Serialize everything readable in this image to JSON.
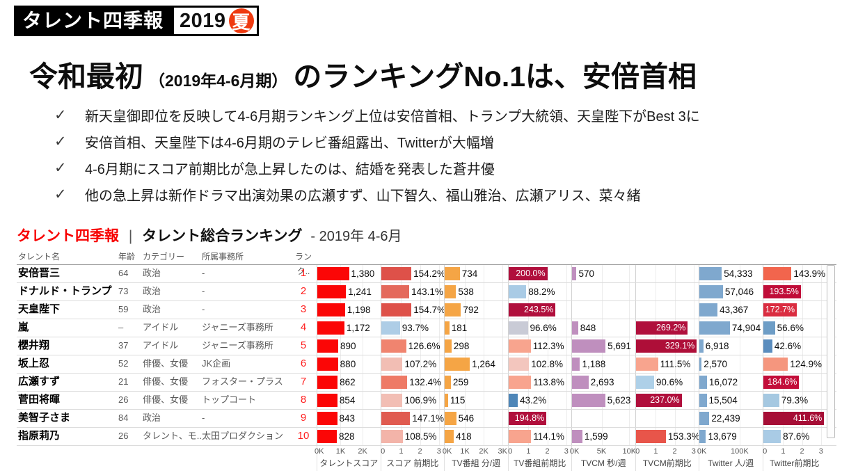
{
  "logo": {
    "title": "タレント四季報",
    "year": "2019",
    "season": "夏"
  },
  "headline": {
    "prefix": "令和最初",
    "period": "（2019年4-6月期）",
    "suffix": "のランキングNo.1は、安倍首相"
  },
  "bullets": [
    "新天皇御即位を反映して4-6月期ランキング上位は安倍首相、トランプ大統領、天皇陛下がBest 3に",
    "安倍首相、天皇陛下は4-6月期のテレビ番組露出、Twitterが大幅増",
    "4-6月期にスコア前期比が急上昇したのは、結婚を発表した蒼井優",
    "他の急上昇は新作ドラマ出演効果の広瀬すず、山下智久、福山雅治、広瀬アリス、菜々緒"
  ],
  "section": {
    "brand": "タレント四季報",
    "separator": "|",
    "title": "タレント総合ランキング",
    "period": "- 2019年 4-6月"
  },
  "table": {
    "text_headers": [
      "タレント名",
      "年齢",
      "カテゴリー",
      "所属事務所",
      "ランク.."
    ],
    "metric_columns": [
      {
        "key": "score",
        "title": "タレントスコア",
        "scale": 0.035,
        "ticks": [
          {
            "label": "0K",
            "pos": 3
          },
          {
            "label": "1K",
            "pos": 37
          },
          {
            "label": "2K",
            "pos": 72
          }
        ]
      },
      {
        "key": "score_prev",
        "title": "スコア 前期比",
        "scale": 0.3,
        "ticks": [
          {
            "label": "0",
            "pos": 3
          },
          {
            "label": "1",
            "pos": 32
          },
          {
            "label": "2",
            "pos": 62
          },
          {
            "label": "3",
            "pos": 92
          }
        ]
      },
      {
        "key": "tv_min",
        "title": "TV番組 分/週",
        "scale": 0.03,
        "ticks": [
          {
            "label": "0K",
            "pos": 4
          },
          {
            "label": "1K",
            "pos": 32
          },
          {
            "label": "2K",
            "pos": 62
          },
          {
            "label": "3K",
            "pos": 92
          }
        ]
      },
      {
        "key": "tv_prev",
        "title": "TV番組前期比",
        "scale": 0.3,
        "ticks": [
          {
            "label": "0",
            "pos": 3
          },
          {
            "label": "1",
            "pos": 32
          },
          {
            "label": "2",
            "pos": 62
          },
          {
            "label": "3",
            "pos": 92
          }
        ]
      },
      {
        "key": "cm_sec",
        "title": "TVCM 秒/週",
        "scale": 0.009,
        "ticks": [
          {
            "label": "0K",
            "pos": 4
          },
          {
            "label": "5K",
            "pos": 47
          },
          {
            "label": "10K",
            "pos": 91
          }
        ]
      },
      {
        "key": "cm_prev",
        "title": "TVCM前期比",
        "scale": 0.3,
        "ticks": [
          {
            "label": "0",
            "pos": 3
          },
          {
            "label": "1",
            "pos": 32
          },
          {
            "label": "2",
            "pos": 62
          },
          {
            "label": "3",
            "pos": 92
          }
        ]
      },
      {
        "key": "tw_people",
        "title": "Twitter 人/週",
        "scale": 0.00062,
        "ticks": [
          {
            "label": "0K",
            "pos": 4
          },
          {
            "label": "100K",
            "pos": 64
          }
        ]
      },
      {
        "key": "tw_prev",
        "title": "Twitter前期比",
        "scale": 0.3,
        "ticks": [
          {
            "label": "0",
            "pos": 3
          },
          {
            "label": "1",
            "pos": 32
          },
          {
            "label": "2",
            "pos": 62
          },
          {
            "label": "3",
            "pos": 92
          }
        ]
      }
    ]
  },
  "chart_data": {
    "type": "table",
    "title": "タレント四季報 | タレント総合ランキング - 2019年 4-6月",
    "axis_ranges": {
      "score": [
        0,
        2800
      ],
      "score_prev_pct": [
        0,
        330
      ],
      "tv_min": [
        0,
        3300
      ],
      "tv_prev_pct": [
        0,
        330
      ],
      "cm_sec": [
        0,
        11000
      ],
      "cm_prev_pct": [
        0,
        330
      ],
      "tw_people": [
        0,
        160000
      ],
      "tw_prev_pct": [
        0,
        330
      ]
    },
    "rows": [
      {
        "name": "安倍晋三",
        "age": "64",
        "category": "政治",
        "agency": "-",
        "rank": "1",
        "metrics": {
          "score": {
            "value": 1380,
            "label": "1,380",
            "color": "#fb0606"
          },
          "score_prev": {
            "value": 154.2,
            "label": "154.2%",
            "color": "#de5149"
          },
          "tv_min": {
            "value": 734,
            "label": "734",
            "color": "#f5a545"
          },
          "tv_prev": {
            "value": 200.0,
            "label": "200.0%",
            "color": "#b00f3c",
            "inside": true
          },
          "cm_sec": {
            "value": 570,
            "label": "570",
            "color": "#bf8fbe"
          },
          "cm_prev": null,
          "tw_people": {
            "value": 54333,
            "label": "54,333",
            "color": "#7fa8ce"
          },
          "tw_prev": {
            "value": 143.9,
            "label": "143.9%",
            "color": "#f2654d"
          }
        }
      },
      {
        "name": "ドナルド・トランプ",
        "age": "73",
        "category": "政治",
        "agency": "-",
        "rank": "2",
        "metrics": {
          "score": {
            "value": 1241,
            "label": "1,241",
            "color": "#fb0606"
          },
          "score_prev": {
            "value": 143.1,
            "label": "143.1%",
            "color": "#e4695b"
          },
          "tv_min": {
            "value": 538,
            "label": "538",
            "color": "#f5a545"
          },
          "tv_prev": {
            "value": 88.2,
            "label": "88.2%",
            "color": "#a9cbe5"
          },
          "cm_sec": null,
          "cm_prev": null,
          "tw_people": {
            "value": 57046,
            "label": "57,046",
            "color": "#7fa8ce"
          },
          "tw_prev": {
            "value": 193.5,
            "label": "193.5%",
            "color": "#c00d38",
            "inside": true
          }
        }
      },
      {
        "name": "天皇陛下",
        "age": "59",
        "category": "政治",
        "agency": "-",
        "rank": "3",
        "metrics": {
          "score": {
            "value": 1198,
            "label": "1,198",
            "color": "#fb0606"
          },
          "score_prev": {
            "value": 154.7,
            "label": "154.7%",
            "color": "#de5149"
          },
          "tv_min": {
            "value": 792,
            "label": "792",
            "color": "#f5a545"
          },
          "tv_prev": {
            "value": 243.5,
            "label": "243.5%",
            "color": "#b00f3c",
            "inside": true
          },
          "cm_sec": null,
          "cm_prev": null,
          "tw_people": {
            "value": 43367,
            "label": "43,367",
            "color": "#7fa8ce"
          },
          "tw_prev": {
            "value": 172.7,
            "label": "172.7%",
            "color": "#da2c40",
            "inside": true
          }
        }
      },
      {
        "name": "嵐",
        "age": "–",
        "category": "アイドル",
        "agency": "ジャニーズ事務所",
        "rank": "4",
        "metrics": {
          "score": {
            "value": 1172,
            "label": "1,172",
            "color": "#fb0606"
          },
          "score_prev": {
            "value": 93.7,
            "label": "93.7%",
            "color": "#aecde6"
          },
          "tv_min": {
            "value": 181,
            "label": "181",
            "color": "#f5a545"
          },
          "tv_prev": {
            "value": 96.6,
            "label": "96.6%",
            "color": "#c9cbd6"
          },
          "cm_sec": {
            "value": 848,
            "label": "848",
            "color": "#bf8fbe"
          },
          "cm_prev": {
            "value": 269.2,
            "label": "269.2%",
            "color": "#b00f3c",
            "inside": true
          },
          "tw_people": {
            "value": 74904,
            "label": "74,904",
            "color": "#7fa8ce"
          },
          "tw_prev": {
            "value": 56.6,
            "label": "56.6%",
            "color": "#6d9dc6"
          }
        }
      },
      {
        "name": "櫻井翔",
        "age": "37",
        "category": "アイドル",
        "agency": "ジャニーズ事務所",
        "rank": "5",
        "metrics": {
          "score": {
            "value": 890,
            "label": "890",
            "color": "#fb0606"
          },
          "score_prev": {
            "value": 126.6,
            "label": "126.6%",
            "color": "#f0846f"
          },
          "tv_min": {
            "value": 298,
            "label": "298",
            "color": "#f5a545"
          },
          "tv_prev": {
            "value": 112.3,
            "label": "112.3%",
            "color": "#f8a48e"
          },
          "cm_sec": {
            "value": 5691,
            "label": "5,691",
            "color": "#bf8fbe"
          },
          "cm_prev": {
            "value": 329.1,
            "label": "329.1%",
            "color": "#ae0e38",
            "inside": true
          },
          "tw_people": {
            "value": 6918,
            "label": "6,918",
            "color": "#7fa8ce"
          },
          "tw_prev": {
            "value": 42.6,
            "label": "42.6%",
            "color": "#5b8dbe"
          }
        }
      },
      {
        "name": "坂上忍",
        "age": "52",
        "category": "俳優、女優",
        "agency": "JK企画",
        "rank": "6",
        "metrics": {
          "score": {
            "value": 880,
            "label": "880",
            "color": "#fb0606"
          },
          "score_prev": {
            "value": 107.2,
            "label": "107.2%",
            "color": "#f2beb4"
          },
          "tv_min": {
            "value": 1264,
            "label": "1,264",
            "color": "#f5a545"
          },
          "tv_prev": {
            "value": 102.8,
            "label": "102.8%",
            "color": "#f3c6be"
          },
          "cm_sec": {
            "value": 1188,
            "label": "1,188",
            "color": "#bf8fbe"
          },
          "cm_prev": {
            "value": 111.5,
            "label": "111.5%",
            "color": "#f8a48e"
          },
          "tw_people": {
            "value": 2570,
            "label": "2,570",
            "color": "#7fa8ce"
          },
          "tw_prev": {
            "value": 124.9,
            "label": "124.9%",
            "color": "#f5967e"
          }
        }
      },
      {
        "name": "広瀬すず",
        "age": "21",
        "category": "俳優、女優",
        "agency": "フォスター・プラス",
        "rank": "7",
        "metrics": {
          "score": {
            "value": 862,
            "label": "862",
            "color": "#fb0606"
          },
          "score_prev": {
            "value": 132.4,
            "label": "132.4%",
            "color": "#ee7a66"
          },
          "tv_min": {
            "value": 259,
            "label": "259",
            "color": "#f5a545"
          },
          "tv_prev": {
            "value": 113.8,
            "label": "113.8%",
            "color": "#f8a48e"
          },
          "cm_sec": {
            "value": 2693,
            "label": "2,693",
            "color": "#bf8fbe"
          },
          "cm_prev": {
            "value": 90.6,
            "label": "90.6%",
            "color": "#aed0e8"
          },
          "tw_people": {
            "value": 16072,
            "label": "16,072",
            "color": "#7fa8ce"
          },
          "tw_prev": {
            "value": 184.6,
            "label": "184.6%",
            "color": "#c30d39",
            "inside": true
          }
        }
      },
      {
        "name": "菅田将暉",
        "age": "26",
        "category": "俳優、女優",
        "agency": "トップコート",
        "rank": "8",
        "metrics": {
          "score": {
            "value": 854,
            "label": "854",
            "color": "#fb0606"
          },
          "score_prev": {
            "value": 106.9,
            "label": "106.9%",
            "color": "#f2beb4"
          },
          "tv_min": {
            "value": 115,
            "label": "115",
            "color": "#f5a545"
          },
          "tv_prev": {
            "value": 43.2,
            "label": "43.2%",
            "color": "#4e86b8"
          },
          "cm_sec": {
            "value": 5623,
            "label": "5,623",
            "color": "#bf8fbe"
          },
          "cm_prev": {
            "value": 237.0,
            "label": "237.0%",
            "color": "#b00f3c",
            "inside": true
          },
          "tw_people": {
            "value": 15504,
            "label": "15,504",
            "color": "#7fa8ce"
          },
          "tw_prev": {
            "value": 79.3,
            "label": "79.3%",
            "color": "#a5c8e1"
          }
        }
      },
      {
        "name": "美智子さま",
        "age": "84",
        "category": "政治",
        "agency": "-",
        "rank": "9",
        "metrics": {
          "score": {
            "value": 843,
            "label": "843",
            "color": "#fb0606"
          },
          "score_prev": {
            "value": 147.1,
            "label": "147.1%",
            "color": "#e05b50"
          },
          "tv_min": {
            "value": 546,
            "label": "546",
            "color": "#f5a545"
          },
          "tv_prev": {
            "value": 194.8,
            "label": "194.8%",
            "color": "#b00f3c",
            "inside": true
          },
          "cm_sec": null,
          "cm_prev": null,
          "tw_people": {
            "value": 22439,
            "label": "22,439",
            "color": "#7fa8ce"
          },
          "tw_prev": {
            "value": 411.6,
            "label": "411.6%",
            "color": "#a60e36",
            "inside": true
          }
        }
      },
      {
        "name": "指原莉乃",
        "age": "26",
        "category": "タレント、モ..",
        "agency": "太田プロダクション",
        "rank": "10",
        "metrics": {
          "score": {
            "value": 828,
            "label": "828",
            "color": "#fb0606"
          },
          "score_prev": {
            "value": 108.5,
            "label": "108.5%",
            "color": "#f3b4a9"
          },
          "tv_min": {
            "value": 418,
            "label": "418",
            "color": "#f5a545"
          },
          "tv_prev": {
            "value": 114.1,
            "label": "114.1%",
            "color": "#f8a48e"
          },
          "cm_sec": {
            "value": 1599,
            "label": "1,599",
            "color": "#bf8fbe"
          },
          "cm_prev": {
            "value": 153.3,
            "label": "153.3%",
            "color": "#e8554a"
          },
          "tw_people": {
            "value": 13679,
            "label": "13,679",
            "color": "#7fa8ce"
          },
          "tw_prev": {
            "value": 87.6,
            "label": "87.6%",
            "color": "#a9cbe5"
          }
        }
      }
    ]
  }
}
